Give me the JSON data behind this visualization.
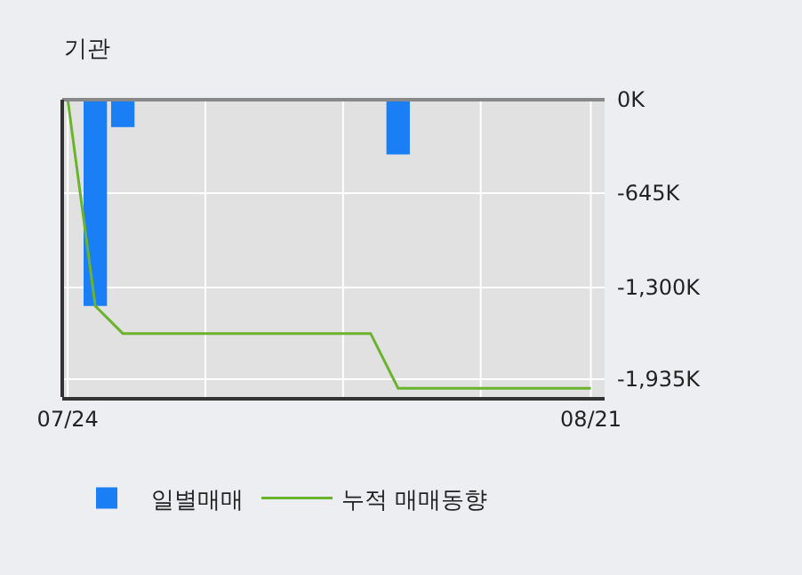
{
  "chart_data": {
    "type": "bar",
    "title": "기관",
    "categories": [
      "07/24",
      null,
      null,
      null,
      null,
      null,
      null,
      null,
      null,
      null,
      null,
      null,
      null,
      null,
      null,
      null,
      null,
      null,
      null,
      "08/21"
    ],
    "series": [
      {
        "name": "일별매매",
        "color": "#1a7ef5",
        "values": [
          0,
          -1430,
          -190,
          0,
          0,
          0,
          0,
          0,
          0,
          0,
          0,
          0,
          -380,
          0,
          0,
          0,
          0,
          0,
          0,
          0
        ]
      },
      {
        "name": "누적 매매동향",
        "type": "line",
        "color": "#6ab42d",
        "values": [
          0,
          -1430,
          -1620,
          -1620,
          -1620,
          -1620,
          -1620,
          -1620,
          -1620,
          -1620,
          -1620,
          -1620,
          -2000,
          -2000,
          -2000,
          -2000,
          -2000,
          -2000,
          -2000,
          -2000
        ]
      }
    ],
    "ylim": [
      -2060,
      0
    ],
    "yticks": [
      {
        "value": 0,
        "label": "0K"
      },
      {
        "value": -645,
        "label": "-645K"
      },
      {
        "value": -1300,
        "label": "-1,300K"
      },
      {
        "value": -1935,
        "label": "-1,935K"
      }
    ],
    "grid": true,
    "legend": "bottom"
  }
}
